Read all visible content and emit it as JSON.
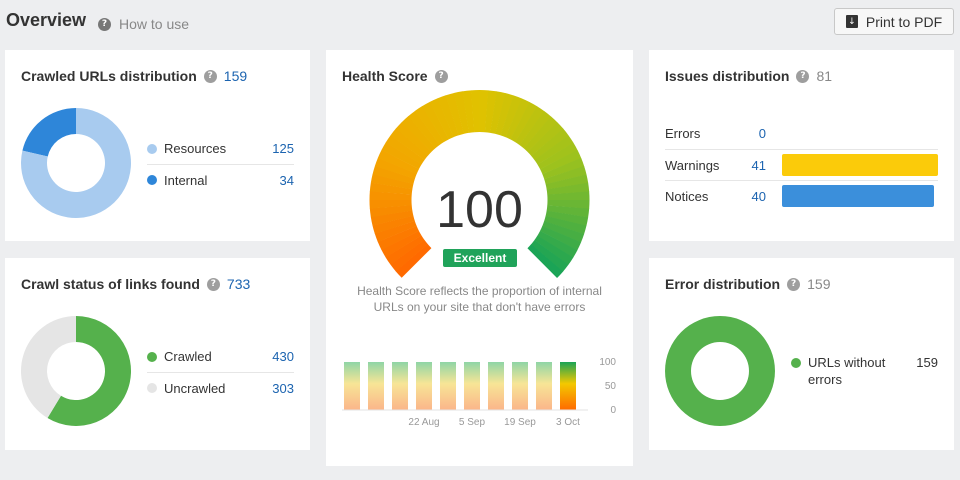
{
  "header": {
    "title": "Overview",
    "how_to_use": "How to use",
    "print_label": "Print to PDF"
  },
  "crawled_urls": {
    "title": "Crawled URLs distribution",
    "total": "159",
    "items": [
      {
        "label": "Resources",
        "value": "125",
        "color": "#a8cbef"
      },
      {
        "label": "Internal",
        "value": "34",
        "color": "#2e86d9"
      }
    ]
  },
  "link_status": {
    "title": "Crawl status of links found",
    "total": "733",
    "items": [
      {
        "label": "Crawled",
        "value": "430",
        "color": "#55b14c"
      },
      {
        "label": "Uncrawled",
        "value": "303",
        "color": "#e5e5e5"
      }
    ]
  },
  "health": {
    "title": "Health Score",
    "score": "100",
    "badge": "Excellent",
    "description": "Health Score reflects the proportion of internal URLs on your site that don't have errors",
    "y_ticks": [
      "100",
      "50",
      "0"
    ],
    "x_labels": [
      "22 Aug",
      "5 Sep",
      "19 Sep",
      "3 Oct"
    ],
    "badge_color": "#20a35a"
  },
  "issues": {
    "title": "Issues distribution",
    "total": "81",
    "rows": [
      {
        "label": "Errors",
        "value": "0",
        "share": 0,
        "color": "#e74c3c"
      },
      {
        "label": "Warnings",
        "value": "41",
        "share": 1.0,
        "color": "#fbcb0a"
      },
      {
        "label": "Notices",
        "value": "40",
        "share": 0.976,
        "color": "#3b8fdb"
      }
    ]
  },
  "error_dist": {
    "title": "Error distribution",
    "total": "159",
    "items": [
      {
        "label": "URLs without errors",
        "value": "159",
        "color": "#55b14c"
      }
    ]
  },
  "chart_data": {
    "type": "bar",
    "categories": [
      "",
      "",
      "",
      "",
      "",
      "",
      "",
      "",
      "",
      ""
    ],
    "values": [
      100,
      100,
      100,
      100,
      100,
      100,
      100,
      100,
      100,
      100
    ],
    "x_tick_labels": [
      "22 Aug",
      "5 Sep",
      "19 Sep",
      "3 Oct"
    ],
    "ylim": [
      0,
      100
    ],
    "y_ticks": [
      0,
      50,
      100
    ]
  }
}
